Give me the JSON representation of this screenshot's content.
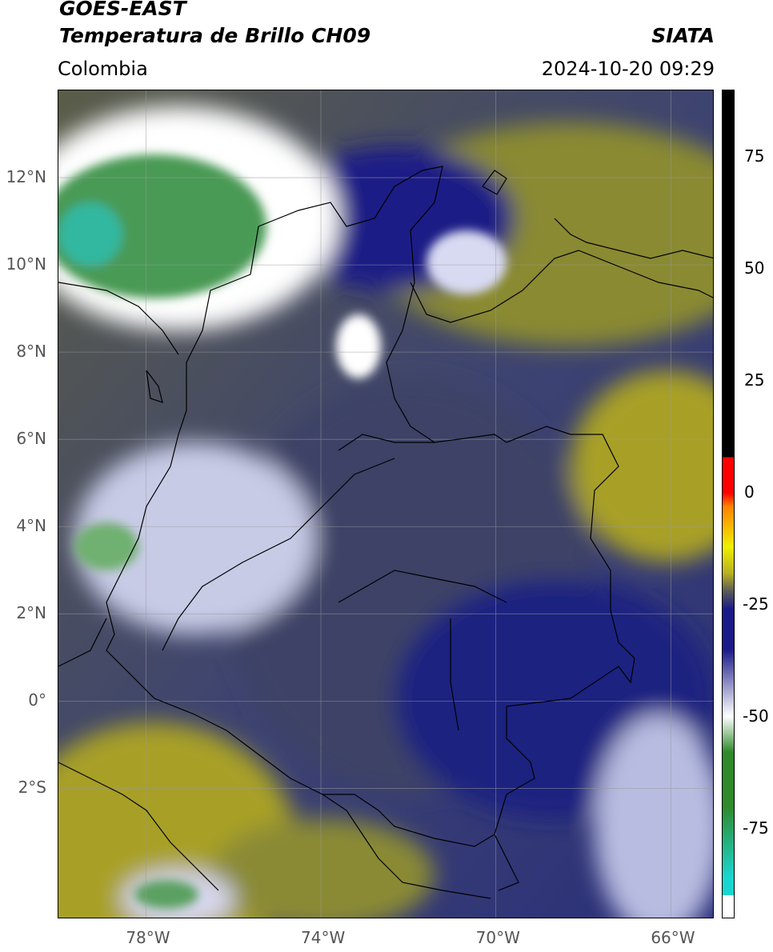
{
  "header": {
    "satellite": "GOES-EAST",
    "product": "Temperatura de Brillo CH09",
    "region": "Colombia",
    "agency": "SIATA",
    "timestamp": "2024-10-20 09:29"
  },
  "map": {
    "lat_range": [
      -5,
      14
    ],
    "lon_range": [
      -80,
      -65
    ],
    "lat_ticks": [
      {
        "value": 12,
        "label": "12°N"
      },
      {
        "value": 10,
        "label": "10°N"
      },
      {
        "value": 8,
        "label": "8°N"
      },
      {
        "value": 6,
        "label": "6°N"
      },
      {
        "value": 4,
        "label": "4°N"
      },
      {
        "value": 2,
        "label": "2°N"
      },
      {
        "value": 0,
        "label": "0°"
      },
      {
        "value": -2,
        "label": "2°S"
      }
    ],
    "lon_ticks": [
      {
        "value": -78,
        "label": "78°W"
      },
      {
        "value": -74,
        "label": "74°W"
      },
      {
        "value": -70,
        "label": "70°W"
      },
      {
        "value": -66,
        "label": "66°W"
      }
    ],
    "gridlines": true
  },
  "colorbar": {
    "range": [
      -95,
      90
    ],
    "ticks": [
      {
        "value": 75,
        "label": "75"
      },
      {
        "value": 50,
        "label": "50"
      },
      {
        "value": 25,
        "label": "25"
      },
      {
        "value": 0,
        "label": "0"
      },
      {
        "value": -25,
        "label": "-25"
      },
      {
        "value": -50,
        "label": "-50"
      },
      {
        "value": -75,
        "label": "-75"
      }
    ],
    "colors": {
      "white": "#ffffff",
      "cyan": "#1ad6d0",
      "green": "#2e8a2a",
      "navy": "#1a1a8a",
      "gray": "#5a5a5a",
      "olive": "#b8b020",
      "yellow": "#f0f000",
      "orange": "#ff8000",
      "red": "#ff0000",
      "black": "#000000"
    }
  }
}
